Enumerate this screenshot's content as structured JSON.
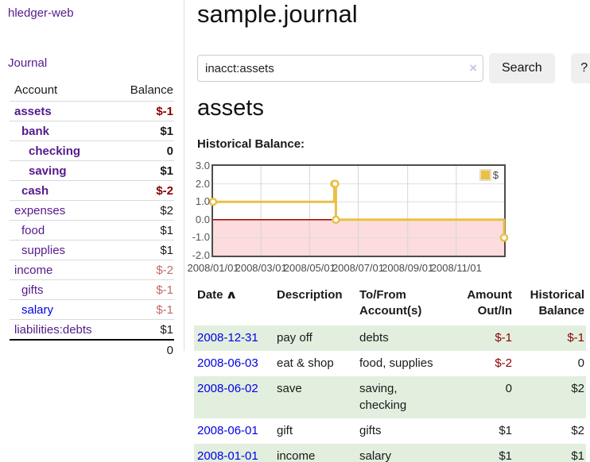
{
  "brand": "hledger-web",
  "colors": {
    "purple": "#551a8b",
    "blue": "#0000e6",
    "darkred": "#8b0000",
    "lightred": "#c26868",
    "black": "#1a1a1a",
    "row_shade_green": "#e2efdf",
    "chart_line_gold": "#e9c049",
    "chart_zero_line": "#a40000",
    "chart_negative_fill": "#fcdcdc"
  },
  "sidebar": {
    "journal_link": "Journal",
    "accounts_header": {
      "account": "Account",
      "balance": "Balance"
    },
    "accounts": [
      {
        "name": "assets",
        "balance": "$-1",
        "level": 1,
        "bold": true,
        "name_color": "purple",
        "balance_color": "darkred"
      },
      {
        "name": "bank",
        "balance": "$1",
        "level": 2,
        "bold": true,
        "name_color": "purple",
        "balance_color": "black"
      },
      {
        "name": "checking",
        "balance": "0",
        "level": 3,
        "bold": true,
        "name_color": "purple",
        "balance_color": "black"
      },
      {
        "name": "saving",
        "balance": "$1",
        "level": 3,
        "bold": true,
        "name_color": "purple",
        "balance_color": "black"
      },
      {
        "name": "cash",
        "balance": "$-2",
        "level": 2,
        "bold": true,
        "name_color": "purple",
        "balance_color": "darkred"
      },
      {
        "name": "expenses",
        "balance": "$2",
        "level": 1,
        "bold": false,
        "name_color": "purple",
        "balance_color": "black"
      },
      {
        "name": "food",
        "balance": "$1",
        "level": 2,
        "bold": false,
        "name_color": "purple",
        "balance_color": "black"
      },
      {
        "name": "supplies",
        "balance": "$1",
        "level": 2,
        "bold": false,
        "name_color": "purple",
        "balance_color": "black"
      },
      {
        "name": "income",
        "balance": "$-2",
        "level": 1,
        "bold": false,
        "name_color": "purple",
        "balance_color": "lightred"
      },
      {
        "name": "gifts",
        "balance": "$-1",
        "level": 2,
        "bold": false,
        "name_color": "purple",
        "balance_color": "lightred"
      },
      {
        "name": "salary",
        "balance": "$-1",
        "level": 2,
        "bold": false,
        "name_color": "blue",
        "balance_color": "lightred"
      },
      {
        "name": "liabilities:debts",
        "balance": "$1",
        "level": 1,
        "bold": false,
        "name_color": "purple",
        "balance_color": "black"
      }
    ],
    "total": "0"
  },
  "header": {
    "title": "sample.journal"
  },
  "search": {
    "value": "inacct:assets",
    "clear_icon": "×",
    "button": "Search",
    "help_button": "?"
  },
  "account_page": {
    "title": "assets",
    "chart_heading": "Historical Balance:"
  },
  "chart_data": {
    "type": "line",
    "style": "steps",
    "title": "Historical Balance:",
    "legend": "$",
    "legend_position": "top-right",
    "grid": true,
    "ylim": [
      -2,
      3
    ],
    "y_ticks": [
      3.0,
      2.0,
      1.0,
      0.0,
      -1.0,
      -2.0
    ],
    "x_start": "2008-01-01",
    "x_end": "2008-12-31",
    "x_ticks": [
      {
        "label": "2008/01/01",
        "date": "2008-01-01"
      },
      {
        "label": "2008/03/01",
        "date": "2008-03-01"
      },
      {
        "label": "2008/05/01",
        "date": "2008-05-01"
      },
      {
        "label": "2008/07/01",
        "date": "2008-07-01"
      },
      {
        "label": "2008/09/01",
        "date": "2008-09-01"
      },
      {
        "label": "2008/11/01",
        "date": "2008-11-01"
      }
    ],
    "series": [
      {
        "name": "$",
        "color": "#e9c049",
        "points": [
          [
            "2008-01-01",
            1
          ],
          [
            "2008-06-01",
            2
          ],
          [
            "2008-06-02",
            2
          ],
          [
            "2008-06-03",
            0
          ],
          [
            "2008-12-31",
            -1
          ]
        ]
      }
    ],
    "zero_line_color": "#a40000",
    "negative_fill": "#fcdcdc"
  },
  "register": {
    "columns": [
      "Date",
      "Description",
      "To/From Account(s)",
      "Amount Out/In",
      "Historical Balance"
    ],
    "sort_indicator": "∧",
    "rows": [
      {
        "date": "2008-12-31",
        "description": "pay off",
        "accounts": "debts",
        "amount": "$-1",
        "amount_color": "darkred",
        "balance": "$-1",
        "balance_color": "darkred",
        "shaded": true
      },
      {
        "date": "2008-06-03",
        "description": "eat & shop",
        "accounts": "food, supplies",
        "amount": "$-2",
        "amount_color": "darkred",
        "balance": "0",
        "balance_color": "black",
        "shaded": false
      },
      {
        "date": "2008-06-02",
        "description": "save",
        "accounts": "saving, checking",
        "amount": "0",
        "amount_color": "black",
        "balance": "$2",
        "balance_color": "black",
        "shaded": true
      },
      {
        "date": "2008-06-01",
        "description": "gift",
        "accounts": "gifts",
        "amount": "$1",
        "amount_color": "black",
        "balance": "$2",
        "balance_color": "black",
        "shaded": false
      },
      {
        "date": "2008-01-01",
        "description": "income",
        "accounts": "salary",
        "amount": "$1",
        "amount_color": "black",
        "balance": "$1",
        "balance_color": "black",
        "shaded": true
      }
    ]
  }
}
